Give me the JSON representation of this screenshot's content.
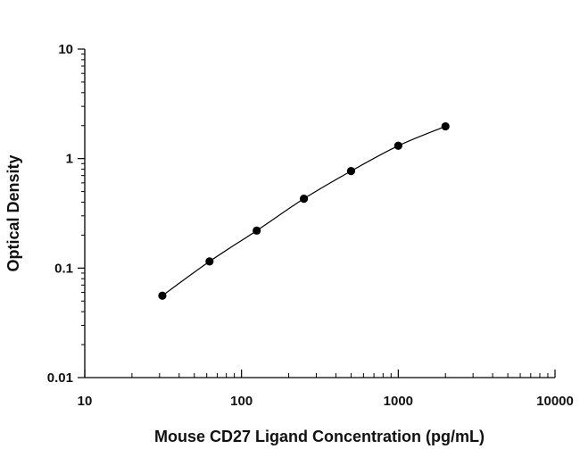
{
  "chart_data": {
    "type": "scatter",
    "title": "",
    "xlabel": "Mouse CD27 Ligand Concentration (pg/mL)",
    "ylabel": "Optical Density",
    "xscale": "log",
    "yscale": "log",
    "xlim": [
      10,
      10000
    ],
    "ylim": [
      0.01,
      10
    ],
    "xticks": [
      "10",
      "100",
      "1000",
      "10000"
    ],
    "yticks": [
      "0.01",
      "0.1",
      "1",
      "10"
    ],
    "grid": false,
    "legend": "none",
    "series": [
      {
        "x": [
          31.25,
          62.5,
          125,
          250,
          500,
          1000,
          2000
        ],
        "y": [
          0.056,
          0.115,
          0.22,
          0.43,
          0.77,
          1.31,
          1.97
        ],
        "fit_curve": true
      }
    ],
    "colors": {
      "marker": "#000000",
      "line": "#000000",
      "axis": "#000000"
    }
  }
}
